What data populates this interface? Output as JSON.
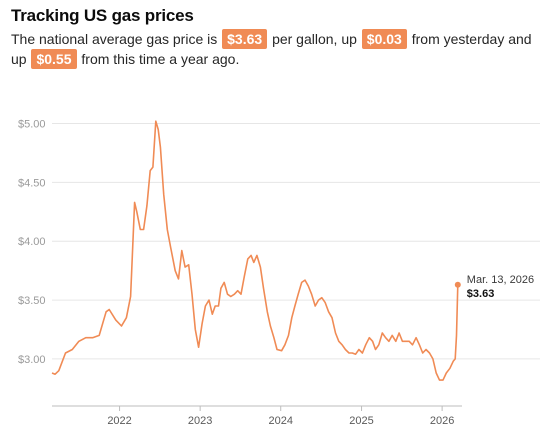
{
  "header": {
    "title": "Tracking US gas prices",
    "sub_1": "The national average gas price is",
    "price": "$3.63",
    "sub_2": "per gallon, up",
    "day_change": "$0.03",
    "sub_3": "from yesterday and up",
    "year_change": "$0.55",
    "sub_4": "from this time a year ago."
  },
  "colors": {
    "line": "#f08b55",
    "badge": "#f08b55",
    "grid": "#e6e6e6",
    "axis": "#bdbdbd"
  },
  "chart_data": {
    "type": "line",
    "title": "Tracking US gas prices",
    "xlabel": "",
    "ylabel": "",
    "grid": true,
    "y_ticks": [
      "$3.00",
      "$3.50",
      "$4.00",
      "$4.50",
      "$5.00"
    ],
    "x_ticks": [
      "2022",
      "2023",
      "2024",
      "2025",
      "2026"
    ],
    "ylim": [
      2.6,
      5.2
    ],
    "xlim": [
      "2021-03-01",
      "2026-04-01"
    ],
    "annotation": {
      "date": "Mar. 13, 2026",
      "value": "$3.63"
    },
    "series": [
      {
        "values": [
          [
            "2021-03-01",
            2.88
          ],
          [
            "2021-03-15",
            2.87
          ],
          [
            "2021-04-01",
            2.9
          ],
          [
            "2021-05-01",
            3.05
          ],
          [
            "2021-06-01",
            3.08
          ],
          [
            "2021-07-01",
            3.15
          ],
          [
            "2021-08-01",
            3.18
          ],
          [
            "2021-09-01",
            3.18
          ],
          [
            "2021-10-01",
            3.2
          ],
          [
            "2021-11-01",
            3.4
          ],
          [
            "2021-11-15",
            3.42
          ],
          [
            "2021-12-15",
            3.33
          ],
          [
            "2022-01-10",
            3.28
          ],
          [
            "2022-02-01",
            3.35
          ],
          [
            "2022-02-20",
            3.53
          ],
          [
            "2022-03-10",
            4.33
          ],
          [
            "2022-03-20",
            4.25
          ],
          [
            "2022-04-05",
            4.1
          ],
          [
            "2022-04-20",
            4.1
          ],
          [
            "2022-05-05",
            4.3
          ],
          [
            "2022-05-20",
            4.6
          ],
          [
            "2022-06-01",
            4.63
          ],
          [
            "2022-06-14",
            5.02
          ],
          [
            "2022-06-25",
            4.95
          ],
          [
            "2022-07-05",
            4.8
          ],
          [
            "2022-07-20",
            4.4
          ],
          [
            "2022-08-05",
            4.1
          ],
          [
            "2022-08-20",
            3.95
          ],
          [
            "2022-09-10",
            3.75
          ],
          [
            "2022-09-25",
            3.68
          ],
          [
            "2022-10-10",
            3.92
          ],
          [
            "2022-10-25",
            3.78
          ],
          [
            "2022-11-10",
            3.8
          ],
          [
            "2022-11-25",
            3.55
          ],
          [
            "2022-12-10",
            3.25
          ],
          [
            "2022-12-25",
            3.1
          ],
          [
            "2023-01-10",
            3.3
          ],
          [
            "2023-01-25",
            3.45
          ],
          [
            "2023-02-10",
            3.5
          ],
          [
            "2023-02-25",
            3.38
          ],
          [
            "2023-03-10",
            3.45
          ],
          [
            "2023-03-25",
            3.45
          ],
          [
            "2023-04-05",
            3.6
          ],
          [
            "2023-04-20",
            3.65
          ],
          [
            "2023-05-05",
            3.55
          ],
          [
            "2023-05-20",
            3.53
          ],
          [
            "2023-06-05",
            3.55
          ],
          [
            "2023-06-20",
            3.58
          ],
          [
            "2023-07-05",
            3.55
          ],
          [
            "2023-07-20",
            3.7
          ],
          [
            "2023-08-05",
            3.85
          ],
          [
            "2023-08-20",
            3.88
          ],
          [
            "2023-09-01",
            3.82
          ],
          [
            "2023-09-15",
            3.88
          ],
          [
            "2023-10-01",
            3.78
          ],
          [
            "2023-10-15",
            3.6
          ],
          [
            "2023-11-01",
            3.4
          ],
          [
            "2023-11-15",
            3.28
          ],
          [
            "2023-12-01",
            3.18
          ],
          [
            "2023-12-15",
            3.08
          ],
          [
            "2024-01-05",
            3.07
          ],
          [
            "2024-01-20",
            3.12
          ],
          [
            "2024-02-05",
            3.2
          ],
          [
            "2024-02-20",
            3.35
          ],
          [
            "2024-03-05",
            3.45
          ],
          [
            "2024-03-20",
            3.55
          ],
          [
            "2024-04-05",
            3.65
          ],
          [
            "2024-04-20",
            3.67
          ],
          [
            "2024-05-05",
            3.62
          ],
          [
            "2024-05-20",
            3.55
          ],
          [
            "2024-06-05",
            3.45
          ],
          [
            "2024-06-20",
            3.5
          ],
          [
            "2024-07-05",
            3.52
          ],
          [
            "2024-07-20",
            3.48
          ],
          [
            "2024-08-05",
            3.4
          ],
          [
            "2024-08-20",
            3.35
          ],
          [
            "2024-09-05",
            3.22
          ],
          [
            "2024-09-20",
            3.15
          ],
          [
            "2024-10-05",
            3.12
          ],
          [
            "2024-10-20",
            3.08
          ],
          [
            "2024-11-05",
            3.05
          ],
          [
            "2024-11-20",
            3.05
          ],
          [
            "2024-12-05",
            3.04
          ],
          [
            "2024-12-20",
            3.08
          ],
          [
            "2025-01-05",
            3.05
          ],
          [
            "2025-01-20",
            3.12
          ],
          [
            "2025-02-05",
            3.18
          ],
          [
            "2025-02-20",
            3.15
          ],
          [
            "2025-03-05",
            3.08
          ],
          [
            "2025-03-20",
            3.12
          ],
          [
            "2025-04-05",
            3.22
          ],
          [
            "2025-04-20",
            3.18
          ],
          [
            "2025-05-05",
            3.15
          ],
          [
            "2025-05-20",
            3.2
          ],
          [
            "2025-06-05",
            3.15
          ],
          [
            "2025-06-20",
            3.22
          ],
          [
            "2025-07-05",
            3.15
          ],
          [
            "2025-07-20",
            3.15
          ],
          [
            "2025-08-05",
            3.15
          ],
          [
            "2025-08-20",
            3.12
          ],
          [
            "2025-09-05",
            3.18
          ],
          [
            "2025-09-20",
            3.12
          ],
          [
            "2025-10-05",
            3.05
          ],
          [
            "2025-10-20",
            3.08
          ],
          [
            "2025-11-05",
            3.05
          ],
          [
            "2025-11-20",
            3.0
          ],
          [
            "2025-12-05",
            2.88
          ],
          [
            "2025-12-20",
            2.82
          ],
          [
            "2026-01-05",
            2.82
          ],
          [
            "2026-01-20",
            2.88
          ],
          [
            "2026-02-05",
            2.92
          ],
          [
            "2026-02-20",
            2.98
          ],
          [
            "2026-03-01",
            3.0
          ],
          [
            "2026-03-07",
            3.2
          ],
          [
            "2026-03-13",
            3.63
          ]
        ]
      }
    ]
  }
}
